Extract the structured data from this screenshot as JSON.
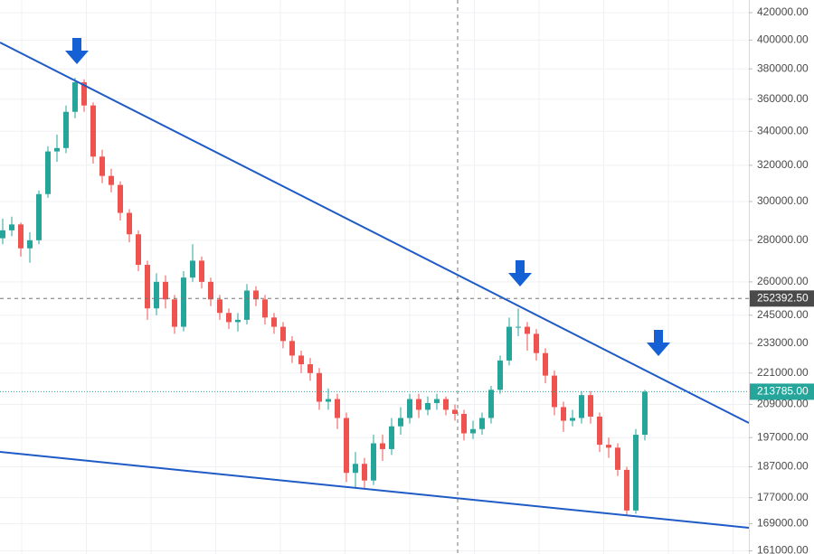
{
  "chart_data": {
    "type": "candlestick",
    "log_scale": true,
    "grid": true,
    "up_color": "#26a69a",
    "down_color": "#ef5350",
    "ylim": [
      160100,
      429600
    ],
    "yticks": [
      {
        "value": 161000,
        "label": "161000.00"
      },
      {
        "value": 169000,
        "label": "169000.00"
      },
      {
        "value": 177000,
        "label": "177000.00"
      },
      {
        "value": 187000,
        "label": "187000.00"
      },
      {
        "value": 197000,
        "label": "197000.00"
      },
      {
        "value": 209000,
        "label": "209000.00"
      },
      {
        "value": 221000,
        "label": "221000.00"
      },
      {
        "value": 233000,
        "label": "233000.00"
      },
      {
        "value": 245000,
        "label": "245000.00"
      },
      {
        "value": 260000,
        "label": "260000.00"
      },
      {
        "value": 280000,
        "label": "280000.00"
      },
      {
        "value": 300000,
        "label": "300000.00"
      },
      {
        "value": 320000,
        "label": "320000.00"
      },
      {
        "value": 340000,
        "label": "340000.00"
      },
      {
        "value": 360000,
        "label": "360000.00"
      },
      {
        "value": 380000,
        "label": "380000.00"
      },
      {
        "value": 400000,
        "label": "400000.00"
      },
      {
        "value": 420000,
        "label": "420000.00"
      }
    ],
    "crosshair_price": {
      "value": 252392.5,
      "label": "252392.50"
    },
    "last_price": {
      "value": 213785,
      "label": "213785.00"
    },
    "open": [
      281000,
      285000,
      288000,
      276000,
      280000,
      304000,
      328000,
      330000,
      352000,
      371000,
      356000,
      325000,
      314000,
      309000,
      294000,
      283000,
      268000,
      248000,
      260000,
      252000,
      240000,
      262000,
      270000,
      260000,
      252000,
      246000,
      242000,
      243000,
      256000,
      252000,
      244000,
      240000,
      234000,
      228000,
      224500,
      221000,
      210000,
      211000,
      204000,
      185000,
      188000,
      182500,
      195000,
      193000,
      201000,
      204000,
      211000,
      207000,
      209500,
      211000,
      207000,
      205500,
      198500,
      200000,
      204000,
      214500,
      226000,
      240000,
      240000,
      237000,
      229000,
      220000,
      208000,
      203000,
      204000,
      212500,
      204500,
      194500,
      193500,
      186000,
      173000,
      198000
    ],
    "high": [
      291000,
      292000,
      289000,
      284000,
      306000,
      331000,
      338000,
      356000,
      374000,
      373000,
      358000,
      329000,
      318000,
      311000,
      296000,
      285000,
      270000,
      264000,
      263000,
      254000,
      265000,
      278000,
      272000,
      262000,
      254000,
      248000,
      246000,
      259000,
      258000,
      254000,
      246000,
      242000,
      236000,
      230000,
      227000,
      223000,
      215000,
      213000,
      206000,
      192000,
      190000,
      198000,
      198000,
      204000,
      208000,
      213000,
      213000,
      212000,
      213000,
      212000,
      209000,
      207000,
      203000,
      206000,
      216000,
      228000,
      244000,
      248000,
      242000,
      239000,
      231000,
      222000,
      210000,
      207000,
      214000,
      214000,
      206000,
      197000,
      195000,
      187000,
      200000,
      214500
    ],
    "low": [
      278000,
      282000,
      272000,
      269000,
      278000,
      302000,
      322000,
      327000,
      348000,
      352000,
      321000,
      310000,
      305000,
      290000,
      279000,
      265000,
      243000,
      245000,
      248000,
      237000,
      238000,
      260000,
      257000,
      249000,
      243000,
      239000,
      238000,
      241000,
      249000,
      241000,
      237000,
      231000,
      225000,
      221000,
      218000,
      207000,
      207000,
      200000,
      182000,
      180000,
      180000,
      181000,
      189000,
      191000,
      198000,
      202000,
      204000,
      205000,
      207000,
      205000,
      203000,
      196000,
      196500,
      198000,
      202000,
      213000,
      224000,
      236000,
      230000,
      226000,
      217000,
      205000,
      199000,
      201000,
      202000,
      202000,
      192000,
      190000,
      184000,
      171500,
      172000,
      196000
    ],
    "close": [
      285000,
      288000,
      276000,
      280000,
      304000,
      328000,
      330000,
      352000,
      371000,
      356000,
      325000,
      314000,
      309000,
      294000,
      283000,
      268000,
      248000,
      260000,
      252000,
      240000,
      262000,
      270000,
      260000,
      252000,
      246000,
      242000,
      243000,
      256000,
      252000,
      244000,
      240000,
      234000,
      228000,
      224500,
      221000,
      210000,
      211000,
      204000,
      185000,
      188000,
      182500,
      195000,
      193000,
      201000,
      204000,
      211000,
      207000,
      209500,
      211000,
      207000,
      205500,
      198500,
      200000,
      204000,
      214500,
      226000,
      240000,
      240000,
      237000,
      229000,
      220000,
      208000,
      203000,
      204000,
      212500,
      204500,
      194500,
      193500,
      186000,
      173000,
      198000,
      213785
    ]
  }
}
